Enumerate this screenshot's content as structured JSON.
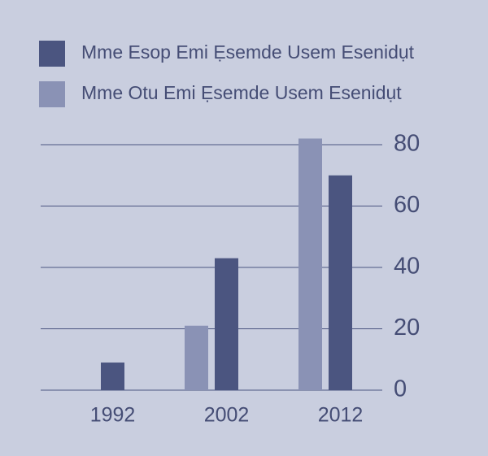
{
  "chart_data": {
    "type": "bar",
    "categories": [
      "1992",
      "2002",
      "2012"
    ],
    "series": [
      {
        "name": "Mme Esop Emi Ẹsemde Usem Esenidụt",
        "color": "#4b5580",
        "values": [
          9,
          43,
          70
        ]
      },
      {
        "name": "Mme Otu Emi Ẹsemde Usem Esenidụt",
        "color": "#8a92b5",
        "values": [
          null,
          21,
          82
        ]
      }
    ],
    "ylim": [
      0,
      80
    ],
    "yticks": [
      0,
      20,
      40,
      60,
      80
    ],
    "grid": true
  }
}
